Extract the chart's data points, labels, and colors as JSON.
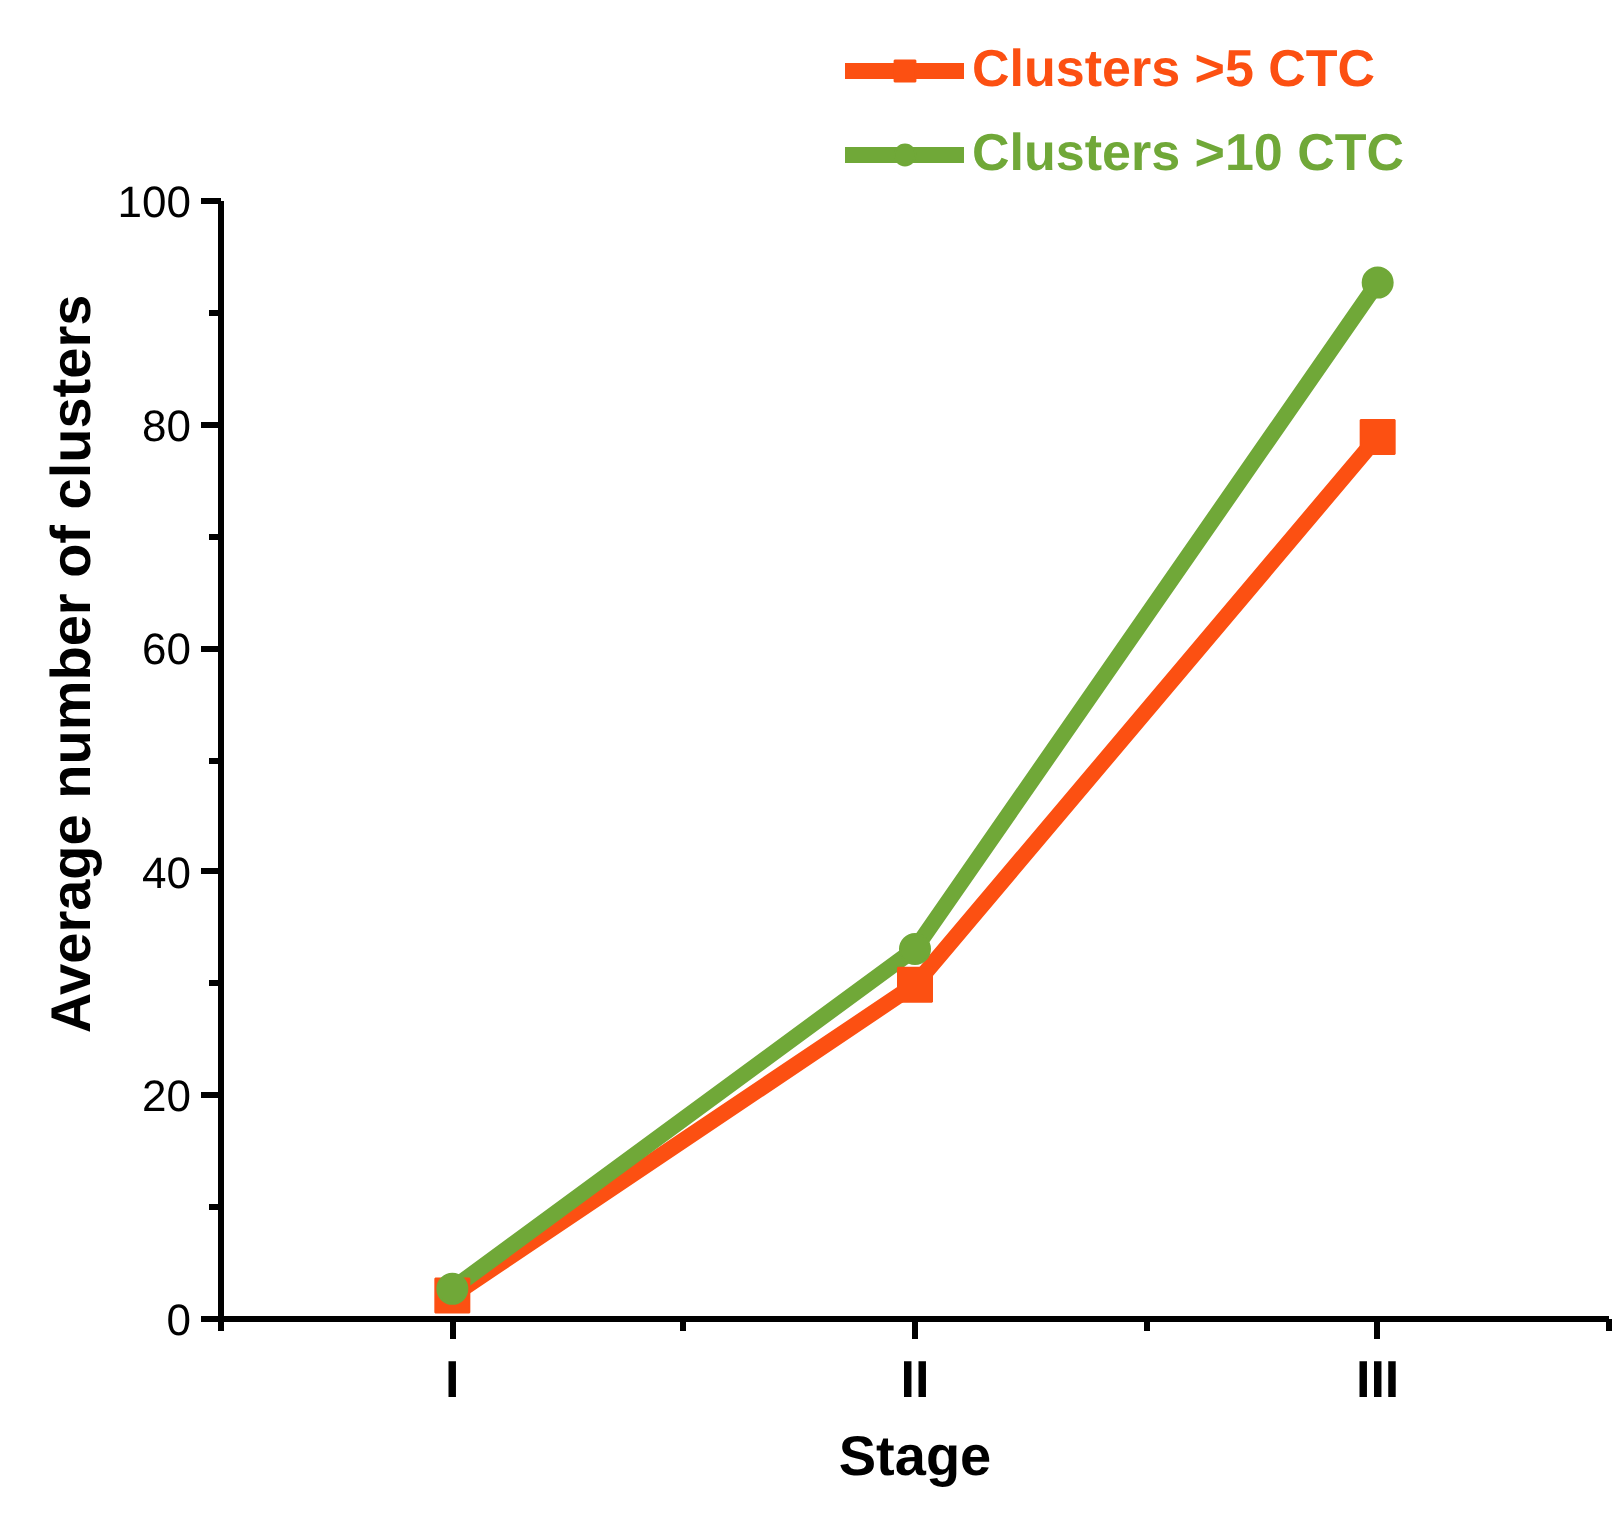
{
  "chart_data": {
    "type": "line",
    "xlabel": "Stage",
    "ylabel": "Average number of clusters",
    "categories": [
      "I",
      "II",
      "III"
    ],
    "series": [
      {
        "name": "Clusters >5 CTC",
        "color": "#fc5012",
        "marker": "square",
        "values": [
          2.1,
          29.9,
          78.9
        ]
      },
      {
        "name": "Clusters >10 CTC",
        "color": "#70a838",
        "marker": "circle",
        "values": [
          2.7,
          33.1,
          92.7
        ]
      }
    ],
    "ylim": [
      0,
      100
    ],
    "yticks": [
      0,
      20,
      40,
      60,
      80,
      100
    ],
    "grid": false,
    "legend": "top right",
    "line_style": "solid"
  }
}
